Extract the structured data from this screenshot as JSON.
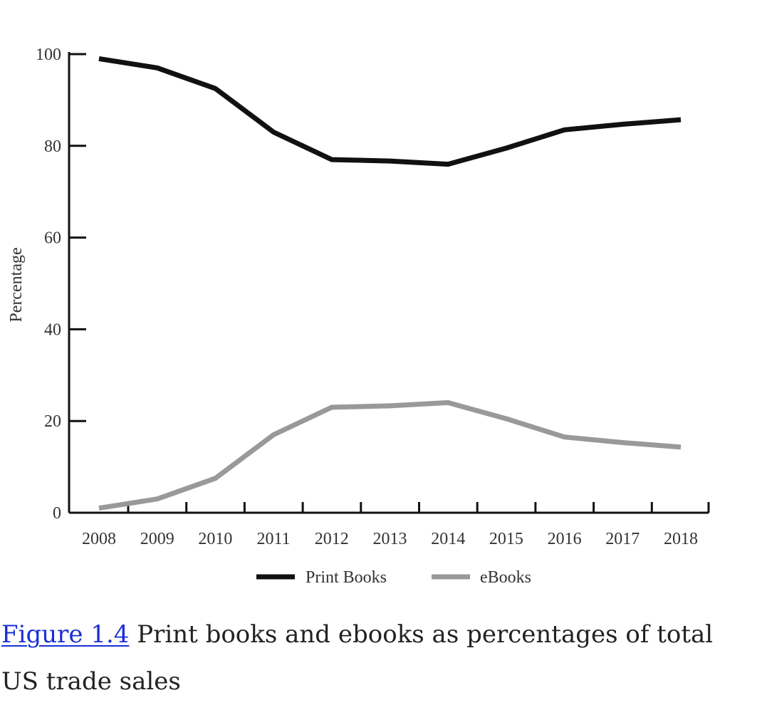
{
  "figure": {
    "label": "Figure 1.4",
    "caption_text": " Print books and ebooks as percentages of total US trade sales"
  },
  "colors": {
    "print_books": "#111111",
    "ebooks": "#999999",
    "axis": "#111111",
    "link": "#1a2fd6"
  },
  "chart_data": {
    "type": "line",
    "title": "",
    "xlabel": "",
    "ylabel": "Percentage",
    "ylim": [
      0,
      100
    ],
    "yticks": [
      0,
      20,
      40,
      60,
      80,
      100
    ],
    "grid": false,
    "legend_position": "bottom-center",
    "categories": [
      "2008",
      "2009",
      "2010",
      "2011",
      "2012",
      "2013",
      "2014",
      "2015",
      "2016",
      "2017",
      "2018"
    ],
    "series": [
      {
        "name": "Print Books",
        "values": [
          99,
          97,
          92.5,
          83,
          77,
          76.7,
          76,
          79.5,
          83.5,
          84.7,
          85.7
        ]
      },
      {
        "name": "eBooks",
        "values": [
          1,
          3,
          7.5,
          17,
          23,
          23.3,
          24,
          20.5,
          16.5,
          15.3,
          14.3
        ]
      }
    ]
  }
}
